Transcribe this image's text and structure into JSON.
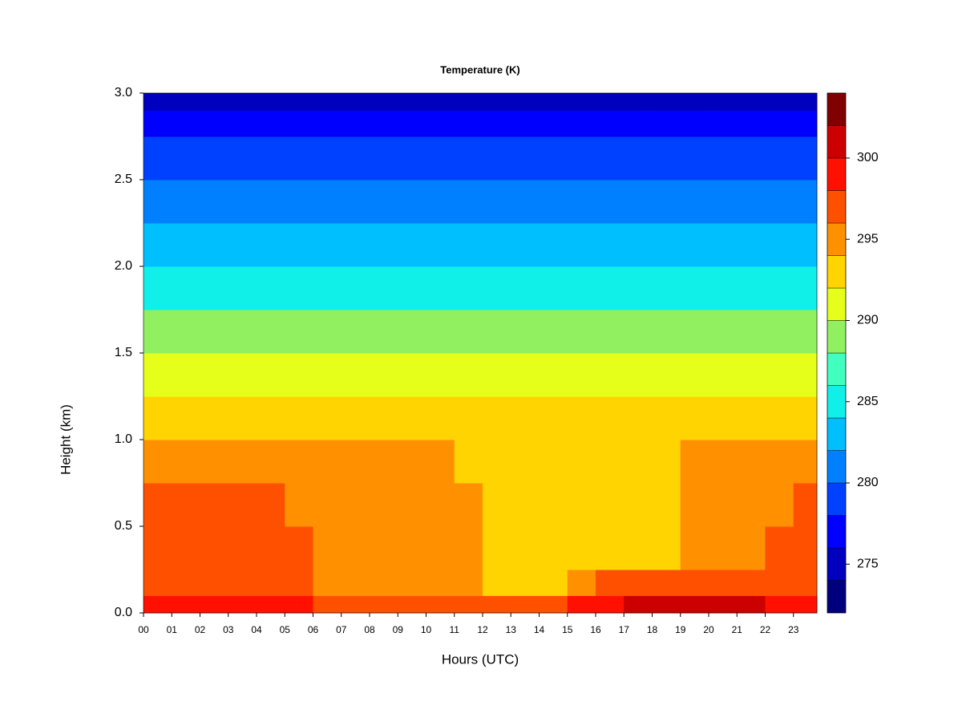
{
  "chart_data": {
    "type": "heatmap",
    "title": "Temperature (K)",
    "x_label": "Hours (UTC)",
    "y_label": "Height (km)",
    "xlim": [
      0,
      23.83
    ],
    "ylim": [
      0,
      3
    ],
    "xticks": [
      {
        "value": 0,
        "label": "00"
      },
      {
        "value": 1,
        "label": "01"
      },
      {
        "value": 2,
        "label": "02"
      },
      {
        "value": 3,
        "label": "03"
      },
      {
        "value": 4,
        "label": "04"
      },
      {
        "value": 5,
        "label": "05"
      },
      {
        "value": 6,
        "label": "06"
      },
      {
        "value": 7,
        "label": "07"
      },
      {
        "value": 8,
        "label": "08"
      },
      {
        "value": 9,
        "label": "09"
      },
      {
        "value": 10,
        "label": "10"
      },
      {
        "value": 11,
        "label": "11"
      },
      {
        "value": 12,
        "label": "12"
      },
      {
        "value": 13,
        "label": "13"
      },
      {
        "value": 14,
        "label": "14"
      },
      {
        "value": 15,
        "label": "15"
      },
      {
        "value": 16,
        "label": "16"
      },
      {
        "value": 17,
        "label": "17"
      },
      {
        "value": 18,
        "label": "18"
      },
      {
        "value": 19,
        "label": "19"
      },
      {
        "value": 20,
        "label": "20"
      },
      {
        "value": 21,
        "label": "21"
      },
      {
        "value": 22,
        "label": "22"
      },
      {
        "value": 23,
        "label": "23"
      }
    ],
    "yticks": [
      {
        "value": 0,
        "label": "0.0"
      },
      0.5,
      {
        "value": 1,
        "label": "1.0"
      },
      1.5,
      {
        "value": 2,
        "label": "2.0"
      },
      2.5,
      {
        "value": 3,
        "label": "3.0"
      }
    ],
    "x_edges": [
      0,
      1,
      2,
      3,
      4,
      5,
      6,
      7,
      8,
      9,
      10,
      11,
      12,
      13,
      14,
      15,
      16,
      17,
      18,
      19,
      20,
      21,
      22,
      23,
      23.83
    ],
    "y_edges": [
      0,
      0.1,
      0.25,
      0.5,
      0.75,
      1.0,
      1.25,
      1.5,
      1.75,
      2.0,
      2.25,
      2.5,
      2.75,
      2.9,
      3.0
    ],
    "z": [
      [
        299,
        299,
        299,
        299,
        299,
        298,
        297,
        297,
        297,
        297,
        297,
        297,
        296,
        297,
        297,
        299,
        299,
        301,
        301,
        301,
        301,
        300,
        299,
        299
      ],
      [
        297,
        297,
        297,
        297,
        297,
        296,
        295,
        295,
        295,
        295,
        295,
        295,
        293,
        293,
        293,
        295,
        297,
        297,
        297,
        297,
        297,
        297,
        297,
        297
      ],
      [
        297,
        297,
        297,
        297,
        297,
        297,
        295,
        295,
        295,
        295,
        295,
        295,
        293,
        293,
        293,
        293,
        293,
        293,
        293,
        295,
        295,
        295,
        297,
        297
      ],
      [
        297,
        297,
        297,
        297,
        297,
        295,
        295,
        295,
        295,
        295,
        295,
        295,
        293,
        293,
        293,
        293,
        293,
        293,
        293,
        295,
        295,
        295,
        295,
        297
      ],
      [
        295,
        295,
        295,
        295,
        295,
        295,
        295,
        295,
        295,
        295,
        295,
        293,
        293,
        293,
        293,
        293,
        293,
        293,
        293,
        295,
        295,
        295,
        295,
        295
      ],
      [
        293,
        293,
        293,
        293,
        293,
        293,
        293,
        293,
        293,
        293,
        293,
        293,
        293,
        293,
        293,
        293,
        293,
        293,
        293,
        293,
        293,
        293,
        293,
        293
      ],
      [
        291,
        291,
        291,
        291,
        291,
        291,
        291,
        291,
        291,
        291,
        291,
        291,
        291,
        291,
        291,
        291,
        291,
        291,
        291,
        291,
        291,
        291,
        291,
        291
      ],
      [
        289,
        289,
        289,
        289,
        289,
        289,
        289,
        289,
        289,
        289,
        289,
        289,
        289,
        289,
        289,
        289,
        289,
        289,
        289,
        289,
        289,
        289,
        289,
        289
      ],
      [
        285,
        285,
        285,
        285,
        285,
        285,
        285,
        285,
        285,
        285,
        285,
        285,
        285,
        285,
        285,
        285,
        285,
        285,
        285,
        285,
        285,
        285,
        285,
        285
      ],
      [
        283,
        283,
        283,
        283,
        283,
        283,
        283,
        283,
        283,
        283,
        283,
        283,
        283,
        283,
        283,
        283,
        283,
        283,
        283,
        283,
        283,
        283,
        283,
        283
      ],
      [
        281,
        281,
        281,
        281,
        281,
        281,
        281,
        281,
        281,
        281,
        281,
        281,
        281,
        281,
        281,
        281,
        281,
        281,
        281,
        281,
        281,
        281,
        281,
        281
      ],
      [
        279,
        279,
        279,
        279,
        279,
        279,
        279,
        279,
        279,
        279,
        279,
        279,
        279,
        279,
        279,
        279,
        279,
        279,
        279,
        279,
        279,
        279,
        279,
        279
      ],
      [
        277,
        277,
        277,
        277,
        277,
        277,
        277,
        277,
        277,
        277,
        277,
        277,
        277,
        277,
        277,
        277,
        277,
        277,
        277,
        277,
        277,
        277,
        277,
        277
      ],
      [
        275,
        275,
        275,
        275,
        275,
        275,
        275,
        275,
        275,
        275,
        275,
        275,
        275,
        275,
        275,
        275,
        275,
        275,
        275,
        275,
        275,
        275,
        275,
        275
      ]
    ],
    "levels": [
      272,
      274,
      276,
      278,
      280,
      282,
      284,
      286,
      288,
      290,
      292,
      294,
      296,
      298,
      300,
      302,
      304
    ],
    "colors": [
      "#00007f",
      "#0000bf",
      "#0000ff",
      "#0040ff",
      "#0080ff",
      "#00bfff",
      "#10f0e8",
      "#40ffbf",
      "#90f060",
      "#e5ff1a",
      "#ffd400",
      "#ff9000",
      "#ff5000",
      "#ff1000",
      "#cc0000",
      "#800000"
    ],
    "colorbar_ticks": [
      275,
      280,
      285,
      290,
      295,
      300
    ]
  }
}
